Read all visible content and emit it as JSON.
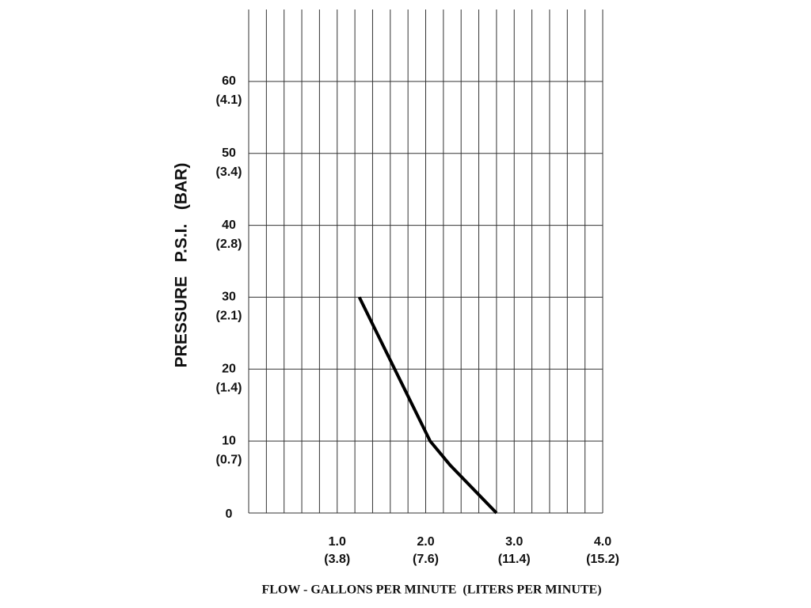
{
  "chart_data": {
    "type": "line",
    "x_label": "FLOW - GALLONS PER MINUTE  (LITERS PER MINUTE)",
    "y_label": "PRESSURE   P.S.I.   (BAR)",
    "x": [
      1.25,
      2.05,
      2.28,
      2.8
    ],
    "series": [
      {
        "color": "#000000",
        "values": [
          30,
          10,
          6.6,
          0
        ]
      }
    ],
    "xlim": [
      0,
      4
    ],
    "ylim": [
      0,
      70
    ],
    "xticks": [
      {
        "value": 1,
        "label": "1.0"
      },
      {
        "value": 2,
        "label": "2.0"
      },
      {
        "value": 3,
        "label": "3.0"
      },
      {
        "value": 4,
        "label": "4.0"
      }
    ],
    "xtick_sublabels": [
      "(3.8)",
      "(7.6)",
      "(11.4)",
      "(15.2)"
    ],
    "yticks": [
      0,
      10,
      20,
      30,
      40,
      50,
      60
    ],
    "ytick_sublabels": [
      null,
      "(0.7)",
      "(1.4)",
      "(2.1)",
      "(2.8)",
      "(3.4)",
      "(4.1)"
    ],
    "grid": true
  }
}
